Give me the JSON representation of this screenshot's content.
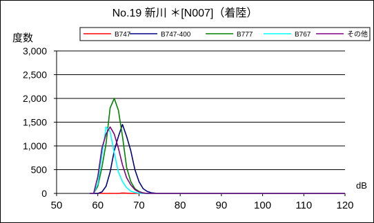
{
  "chart_data": {
    "type": "line",
    "title": "No.19 新川 ＊[N007]（着陸）",
    "ylabel": "度数",
    "xlabel": "dB",
    "xlim": [
      50,
      120
    ],
    "ylim": [
      0,
      3000
    ],
    "x_ticks": [
      50,
      60,
      70,
      80,
      90,
      100,
      110,
      120
    ],
    "y_ticks": [
      0,
      500,
      1000,
      1500,
      2000,
      2500,
      3000
    ],
    "y_tick_labels": [
      "0",
      "500",
      "1,000",
      "1,500",
      "2,000",
      "2,500",
      "3,000"
    ],
    "grid": "horizontal",
    "legend_position": "top",
    "series": [
      {
        "name": "B747",
        "color": "#ff0000",
        "x": [
          58,
          59,
          60,
          61,
          62,
          63,
          64,
          65,
          66,
          67,
          68,
          69,
          70,
          71,
          72,
          73,
          74,
          75,
          76,
          77,
          78,
          79,
          80,
          81,
          82,
          83,
          84,
          85,
          86,
          87,
          88,
          89,
          90,
          91,
          92,
          93,
          94,
          95,
          96,
          97,
          98,
          99,
          100,
          101,
          102,
          103,
          104,
          105,
          106,
          107,
          108,
          109,
          110,
          111,
          112,
          113,
          114,
          115,
          116,
          117,
          118,
          119,
          120
        ],
        "values": [
          0,
          0,
          0,
          0,
          0,
          0,
          0,
          0,
          8,
          5,
          0,
          0,
          0,
          0,
          0,
          0,
          0,
          0,
          0,
          0,
          0,
          0,
          0,
          0,
          0,
          0,
          0,
          0,
          0,
          0,
          0,
          0,
          0,
          0,
          0,
          0,
          0,
          0,
          0,
          0,
          0,
          0,
          0,
          0,
          0,
          0,
          0,
          0,
          0,
          0,
          0,
          0,
          0,
          0,
          0,
          0,
          0,
          0,
          0,
          0,
          0,
          0,
          0
        ]
      },
      {
        "name": "B747-400",
        "color": "#000080",
        "x": [
          58,
          59,
          60,
          61,
          62,
          63,
          64,
          65,
          66,
          67,
          68,
          69,
          70,
          71,
          72,
          73,
          74,
          75,
          76,
          77,
          78,
          79,
          80,
          81,
          82,
          83,
          84,
          85,
          86,
          87,
          88,
          89,
          90,
          91,
          92,
          93,
          94,
          95,
          96,
          97,
          98,
          99,
          100,
          101,
          102,
          103,
          104,
          105,
          106,
          107,
          108,
          109,
          110,
          111,
          112,
          113,
          114,
          115,
          116,
          117,
          118,
          119,
          120
        ],
        "values": [
          0,
          0,
          0,
          30,
          150,
          450,
          900,
          1200,
          1450,
          1200,
          900,
          500,
          250,
          100,
          40,
          15,
          5,
          0,
          0,
          0,
          0,
          0,
          0,
          0,
          0,
          0,
          0,
          0,
          0,
          0,
          0,
          0,
          0,
          0,
          0,
          0,
          0,
          0,
          0,
          0,
          0,
          0,
          0,
          0,
          0,
          0,
          0,
          0,
          0,
          0,
          0,
          0,
          0,
          0,
          0,
          0,
          0,
          0,
          0,
          0,
          0,
          0,
          0
        ]
      },
      {
        "name": "B777",
        "color": "#008000",
        "x": [
          58,
          59,
          60,
          61,
          62,
          63,
          64,
          65,
          66,
          67,
          68,
          69,
          70,
          71,
          72,
          73,
          74,
          75,
          76,
          77,
          78,
          79,
          80,
          81,
          82,
          83,
          84,
          85,
          86,
          87,
          88,
          89,
          90,
          91,
          92,
          93,
          94,
          95,
          96,
          97,
          98,
          99,
          100,
          101,
          102,
          103,
          104,
          105,
          106,
          107,
          108,
          109,
          110,
          111,
          112,
          113,
          114,
          115,
          116,
          117,
          118,
          119,
          120
        ],
        "values": [
          0,
          0,
          150,
          550,
          1050,
          1800,
          2000,
          1750,
          1200,
          550,
          250,
          100,
          40,
          10,
          0,
          0,
          0,
          0,
          0,
          0,
          0,
          0,
          0,
          0,
          0,
          0,
          0,
          0,
          0,
          0,
          0,
          0,
          0,
          0,
          0,
          0,
          0,
          0,
          0,
          0,
          0,
          0,
          0,
          0,
          0,
          0,
          0,
          0,
          0,
          0,
          0,
          0,
          0,
          0,
          0,
          0,
          0,
          0,
          0,
          0,
          0,
          0,
          0
        ]
      },
      {
        "name": "B767",
        "color": "#00ffff",
        "x": [
          58,
          59,
          60,
          61,
          62,
          63,
          64,
          65,
          66,
          67,
          68,
          69,
          70,
          71,
          72,
          73,
          74,
          75,
          76,
          77,
          78,
          79,
          80,
          81,
          82,
          83,
          84,
          85,
          86,
          87,
          88,
          89,
          90,
          91,
          92,
          93,
          94,
          95,
          96,
          97,
          98,
          99,
          100,
          101,
          102,
          103,
          104,
          105,
          106,
          107,
          108,
          109,
          110,
          111,
          112,
          113,
          114,
          115,
          116,
          117,
          118,
          119,
          120
        ],
        "values": [
          0,
          0,
          200,
          800,
          1400,
          1300,
          850,
          450,
          250,
          120,
          50,
          20,
          5,
          0,
          0,
          0,
          0,
          0,
          0,
          0,
          0,
          0,
          0,
          0,
          0,
          0,
          0,
          0,
          0,
          0,
          0,
          0,
          0,
          0,
          0,
          0,
          0,
          0,
          0,
          0,
          0,
          0,
          0,
          0,
          0,
          0,
          0,
          0,
          0,
          0,
          0,
          0,
          0,
          0,
          0,
          0,
          0,
          0,
          0,
          0,
          0,
          0,
          0
        ]
      },
      {
        "name": "その他",
        "color": "#800080",
        "x": [
          58,
          59,
          60,
          61,
          62,
          63,
          64,
          65,
          66,
          67,
          68,
          69,
          70,
          71,
          72,
          73,
          74,
          75,
          76,
          77,
          78,
          79,
          80,
          81,
          82,
          83,
          84,
          85,
          86,
          87,
          88,
          89,
          90,
          91,
          92,
          93,
          94,
          95,
          96,
          97,
          98,
          99,
          100,
          101,
          102,
          103,
          104,
          105,
          106,
          107,
          108,
          109,
          110,
          111,
          112,
          113,
          114,
          115,
          116,
          117,
          118,
          119,
          120
        ],
        "values": [
          0,
          0,
          350,
          950,
          1250,
          1400,
          1250,
          950,
          600,
          330,
          180,
          80,
          30,
          10,
          0,
          0,
          0,
          0,
          0,
          0,
          0,
          0,
          0,
          0,
          0,
          0,
          0,
          0,
          0,
          0,
          0,
          0,
          0,
          0,
          0,
          0,
          0,
          0,
          0,
          0,
          0,
          0,
          0,
          0,
          0,
          0,
          0,
          0,
          0,
          0,
          0,
          0,
          0,
          0,
          0,
          0,
          0,
          0,
          0,
          0,
          0,
          0,
          0
        ]
      }
    ]
  }
}
